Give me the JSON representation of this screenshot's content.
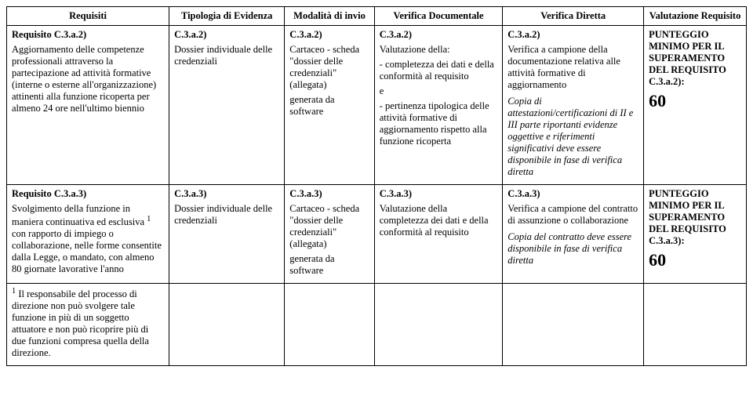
{
  "headers": {
    "c0": "Requisiti",
    "c1": "Tipologia di Evidenza",
    "c2": "Modalità di invio",
    "c3": "Verifica Documentale",
    "c4": "Verifica Diretta",
    "c5": "Valutazione Requisito"
  },
  "row1": {
    "req_title": "Requisito C.3.a.2)",
    "req_body": "Aggiornamento delle competenze professionali attraverso la partecipazione ad attività formative (interne o esterne all'organizzazione) attinenti alla funzione ricoperta per almeno 24 ore nell'ultimo biennio",
    "tip_title": "C.3.a.2)",
    "tip_body": "Dossier individuale delle credenziali",
    "mod_title": "C.3.a.2)",
    "mod_body1": "Cartaceo - scheda \"dossier delle credenziali\" (allegata)",
    "mod_body2": "generata da software",
    "vdoc_title": "C.3.a.2)",
    "vdoc_l1": "Valutazione della:",
    "vdoc_l2": "- completezza dei dati e della conformità al requisito",
    "vdoc_l3": "e",
    "vdoc_l4": "- pertinenza tipologica delle attività formative di aggiornamento rispetto alla funzione ricoperta",
    "vdir_title": "C.3.a.2)",
    "vdir_l1": "Verifica a campione della documentazione relativa alle attività formative di aggiornamento",
    "vdir_l2a": "Copia di attestazioni/certificazioni di II e III parte riportanti evidenze oggettive e riferimenti significativi deve essere disponibile in fase di verifica diretta",
    "val_l1": "PUNTEGGIO MINIMO PER IL SUPERAMENTO DEL REQUISITO C.3.a.2):",
    "val_num": "60"
  },
  "row2": {
    "req_title": "Requisito C.3.a.3)",
    "req_body1": "Svolgimento della funzione in maniera continuativa ed esclusiva ",
    "req_sup": "1",
    "req_body2": " con rapporto di impiego o collaborazione, nelle forme consentite dalla Legge, o mandato, con almeno 80 giornate lavorative l'anno",
    "tip_title": "C.3.a.3)",
    "tip_body": "Dossier individuale delle credenziali",
    "mod_title": "C.3.a.3)",
    "mod_body1": "Cartaceo - scheda \"dossier delle credenziali\" (allegata)",
    "mod_body2": "generata da software",
    "vdoc_title": "C.3.a.3)",
    "vdoc_l1": "Valutazione della completezza dei dati e della conformità al requisito",
    "vdir_title": "C.3.a.3)",
    "vdir_l1": "Verifica a campione del contratto di  assunzione o collaborazione",
    "vdir_l2": "Copia del contratto deve essere disponibile in fase di verifica diretta",
    "val_l1": "PUNTEGGIO MINIMO PER IL SUPERAMENTO DEL REQUISITO C.3.a.3):",
    "val_num": "60"
  },
  "footnote": {
    "sup": "1",
    "text": " Il responsabile del processo di direzione non può svolgere tale funzione in più di un soggetto attuatore e non può ricoprire più di due funzioni compresa quella della direzione."
  }
}
